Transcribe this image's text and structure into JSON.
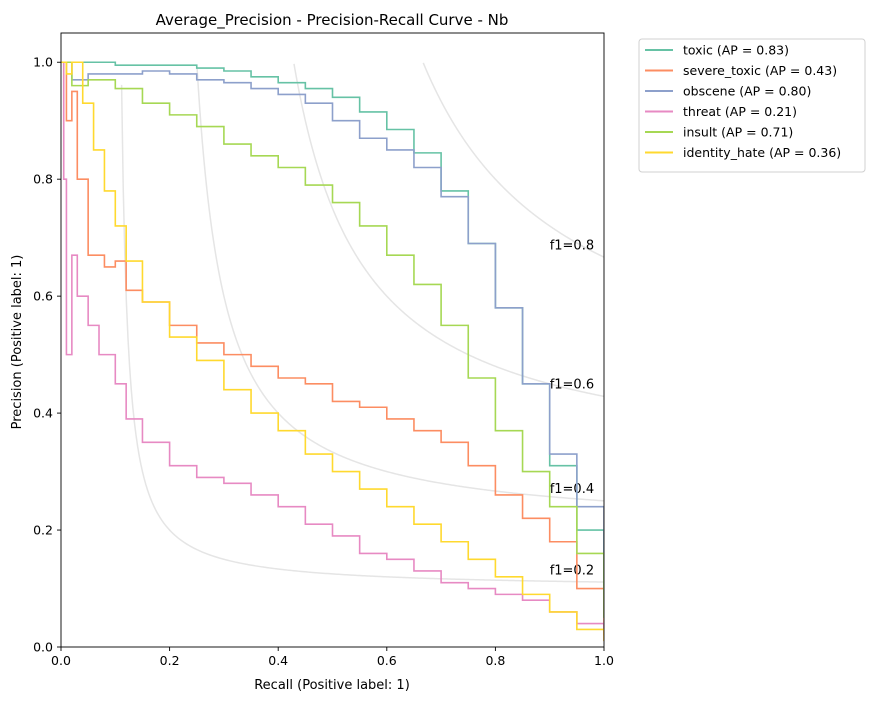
{
  "chart_data": {
    "type": "line",
    "title": "Average_Precision - Precision-Recall Curve - Nb",
    "xlabel": "Recall (Positive label: 1)",
    "ylabel": "Precision (Positive label: 1)",
    "xlim": [
      0,
      1
    ],
    "ylim": [
      0,
      1.05
    ],
    "xticks": [
      "0.0",
      "0.2",
      "0.4",
      "0.6",
      "0.8",
      "1.0"
    ],
    "yticks": [
      "0.0",
      "0.2",
      "0.4",
      "0.6",
      "0.8",
      "1.0"
    ],
    "grid": false,
    "legend_position": "outside-upper-right",
    "iso_f1": [
      {
        "f": 0.2,
        "label": "f1=0.2"
      },
      {
        "f": 0.4,
        "label": "f1=0.4"
      },
      {
        "f": 0.6,
        "label": "f1=0.6"
      },
      {
        "f": 0.8,
        "label": "f1=0.8"
      }
    ],
    "iso_f1_color": "#e5e5e5",
    "series": [
      {
        "name": "toxic (AP = 0.83)",
        "color": "#66c2a5",
        "x": [
          0.0,
          0.02,
          0.05,
          0.1,
          0.15,
          0.2,
          0.25,
          0.3,
          0.35,
          0.4,
          0.45,
          0.5,
          0.55,
          0.6,
          0.65,
          0.7,
          0.75,
          0.8,
          0.85,
          0.9,
          0.95,
          1.0
        ],
        "y": [
          1.0,
          1.0,
          1.0,
          0.995,
          0.995,
          0.995,
          0.99,
          0.985,
          0.975,
          0.965,
          0.955,
          0.94,
          0.915,
          0.885,
          0.845,
          0.78,
          0.69,
          0.58,
          0.45,
          0.31,
          0.2,
          0.09
        ]
      },
      {
        "name": "severe_toxic (AP = 0.43)",
        "color": "#fc8d62",
        "x": [
          0.0,
          0.01,
          0.02,
          0.03,
          0.05,
          0.08,
          0.1,
          0.12,
          0.15,
          0.2,
          0.25,
          0.3,
          0.35,
          0.4,
          0.45,
          0.5,
          0.55,
          0.6,
          0.65,
          0.7,
          0.75,
          0.8,
          0.85,
          0.9,
          0.95,
          1.0
        ],
        "y": [
          1.0,
          0.9,
          0.95,
          0.8,
          0.67,
          0.65,
          0.66,
          0.61,
          0.59,
          0.55,
          0.52,
          0.5,
          0.48,
          0.46,
          0.45,
          0.42,
          0.41,
          0.39,
          0.37,
          0.35,
          0.31,
          0.26,
          0.22,
          0.18,
          0.1,
          0.02
        ]
      },
      {
        "name": "obscene (AP = 0.80)",
        "color": "#8da0cb",
        "x": [
          0.0,
          0.02,
          0.05,
          0.1,
          0.15,
          0.2,
          0.25,
          0.3,
          0.35,
          0.4,
          0.45,
          0.5,
          0.55,
          0.6,
          0.65,
          0.7,
          0.75,
          0.8,
          0.85,
          0.9,
          0.95,
          1.0
        ],
        "y": [
          1.0,
          0.97,
          0.98,
          0.98,
          0.985,
          0.98,
          0.97,
          0.965,
          0.955,
          0.945,
          0.93,
          0.9,
          0.87,
          0.85,
          0.82,
          0.77,
          0.69,
          0.58,
          0.45,
          0.33,
          0.24,
          0.05
        ]
      },
      {
        "name": "threat (AP = 0.21)",
        "color": "#e78ac3",
        "x": [
          0.0,
          0.005,
          0.01,
          0.02,
          0.03,
          0.05,
          0.07,
          0.1,
          0.12,
          0.15,
          0.2,
          0.25,
          0.3,
          0.35,
          0.4,
          0.45,
          0.5,
          0.55,
          0.6,
          0.65,
          0.7,
          0.75,
          0.8,
          0.85,
          0.9,
          0.95,
          1.0
        ],
        "y": [
          1.0,
          0.8,
          0.5,
          0.67,
          0.6,
          0.55,
          0.5,
          0.45,
          0.39,
          0.35,
          0.31,
          0.29,
          0.28,
          0.26,
          0.24,
          0.21,
          0.19,
          0.16,
          0.15,
          0.13,
          0.11,
          0.1,
          0.09,
          0.08,
          0.06,
          0.04,
          0.01
        ]
      },
      {
        "name": "insult (AP = 0.71)",
        "color": "#a6d854",
        "x": [
          0.0,
          0.02,
          0.05,
          0.1,
          0.15,
          0.2,
          0.25,
          0.3,
          0.35,
          0.4,
          0.45,
          0.5,
          0.55,
          0.6,
          0.65,
          0.7,
          0.75,
          0.8,
          0.85,
          0.9,
          0.95,
          1.0
        ],
        "y": [
          1.0,
          0.96,
          0.97,
          0.955,
          0.93,
          0.91,
          0.89,
          0.86,
          0.84,
          0.82,
          0.79,
          0.76,
          0.72,
          0.67,
          0.62,
          0.55,
          0.46,
          0.37,
          0.3,
          0.24,
          0.16,
          0.05
        ]
      },
      {
        "name": "identity_hate (AP = 0.36)",
        "color": "#ffd92f",
        "x": [
          0.0,
          0.01,
          0.02,
          0.04,
          0.06,
          0.08,
          0.1,
          0.12,
          0.15,
          0.2,
          0.25,
          0.3,
          0.35,
          0.4,
          0.45,
          0.5,
          0.55,
          0.6,
          0.65,
          0.7,
          0.75,
          0.8,
          0.85,
          0.9,
          0.95,
          1.0
        ],
        "y": [
          1.0,
          0.98,
          1.0,
          0.93,
          0.85,
          0.78,
          0.72,
          0.66,
          0.59,
          0.53,
          0.49,
          0.44,
          0.4,
          0.37,
          0.33,
          0.3,
          0.27,
          0.24,
          0.21,
          0.18,
          0.15,
          0.12,
          0.09,
          0.06,
          0.03,
          0.01
        ]
      }
    ]
  }
}
